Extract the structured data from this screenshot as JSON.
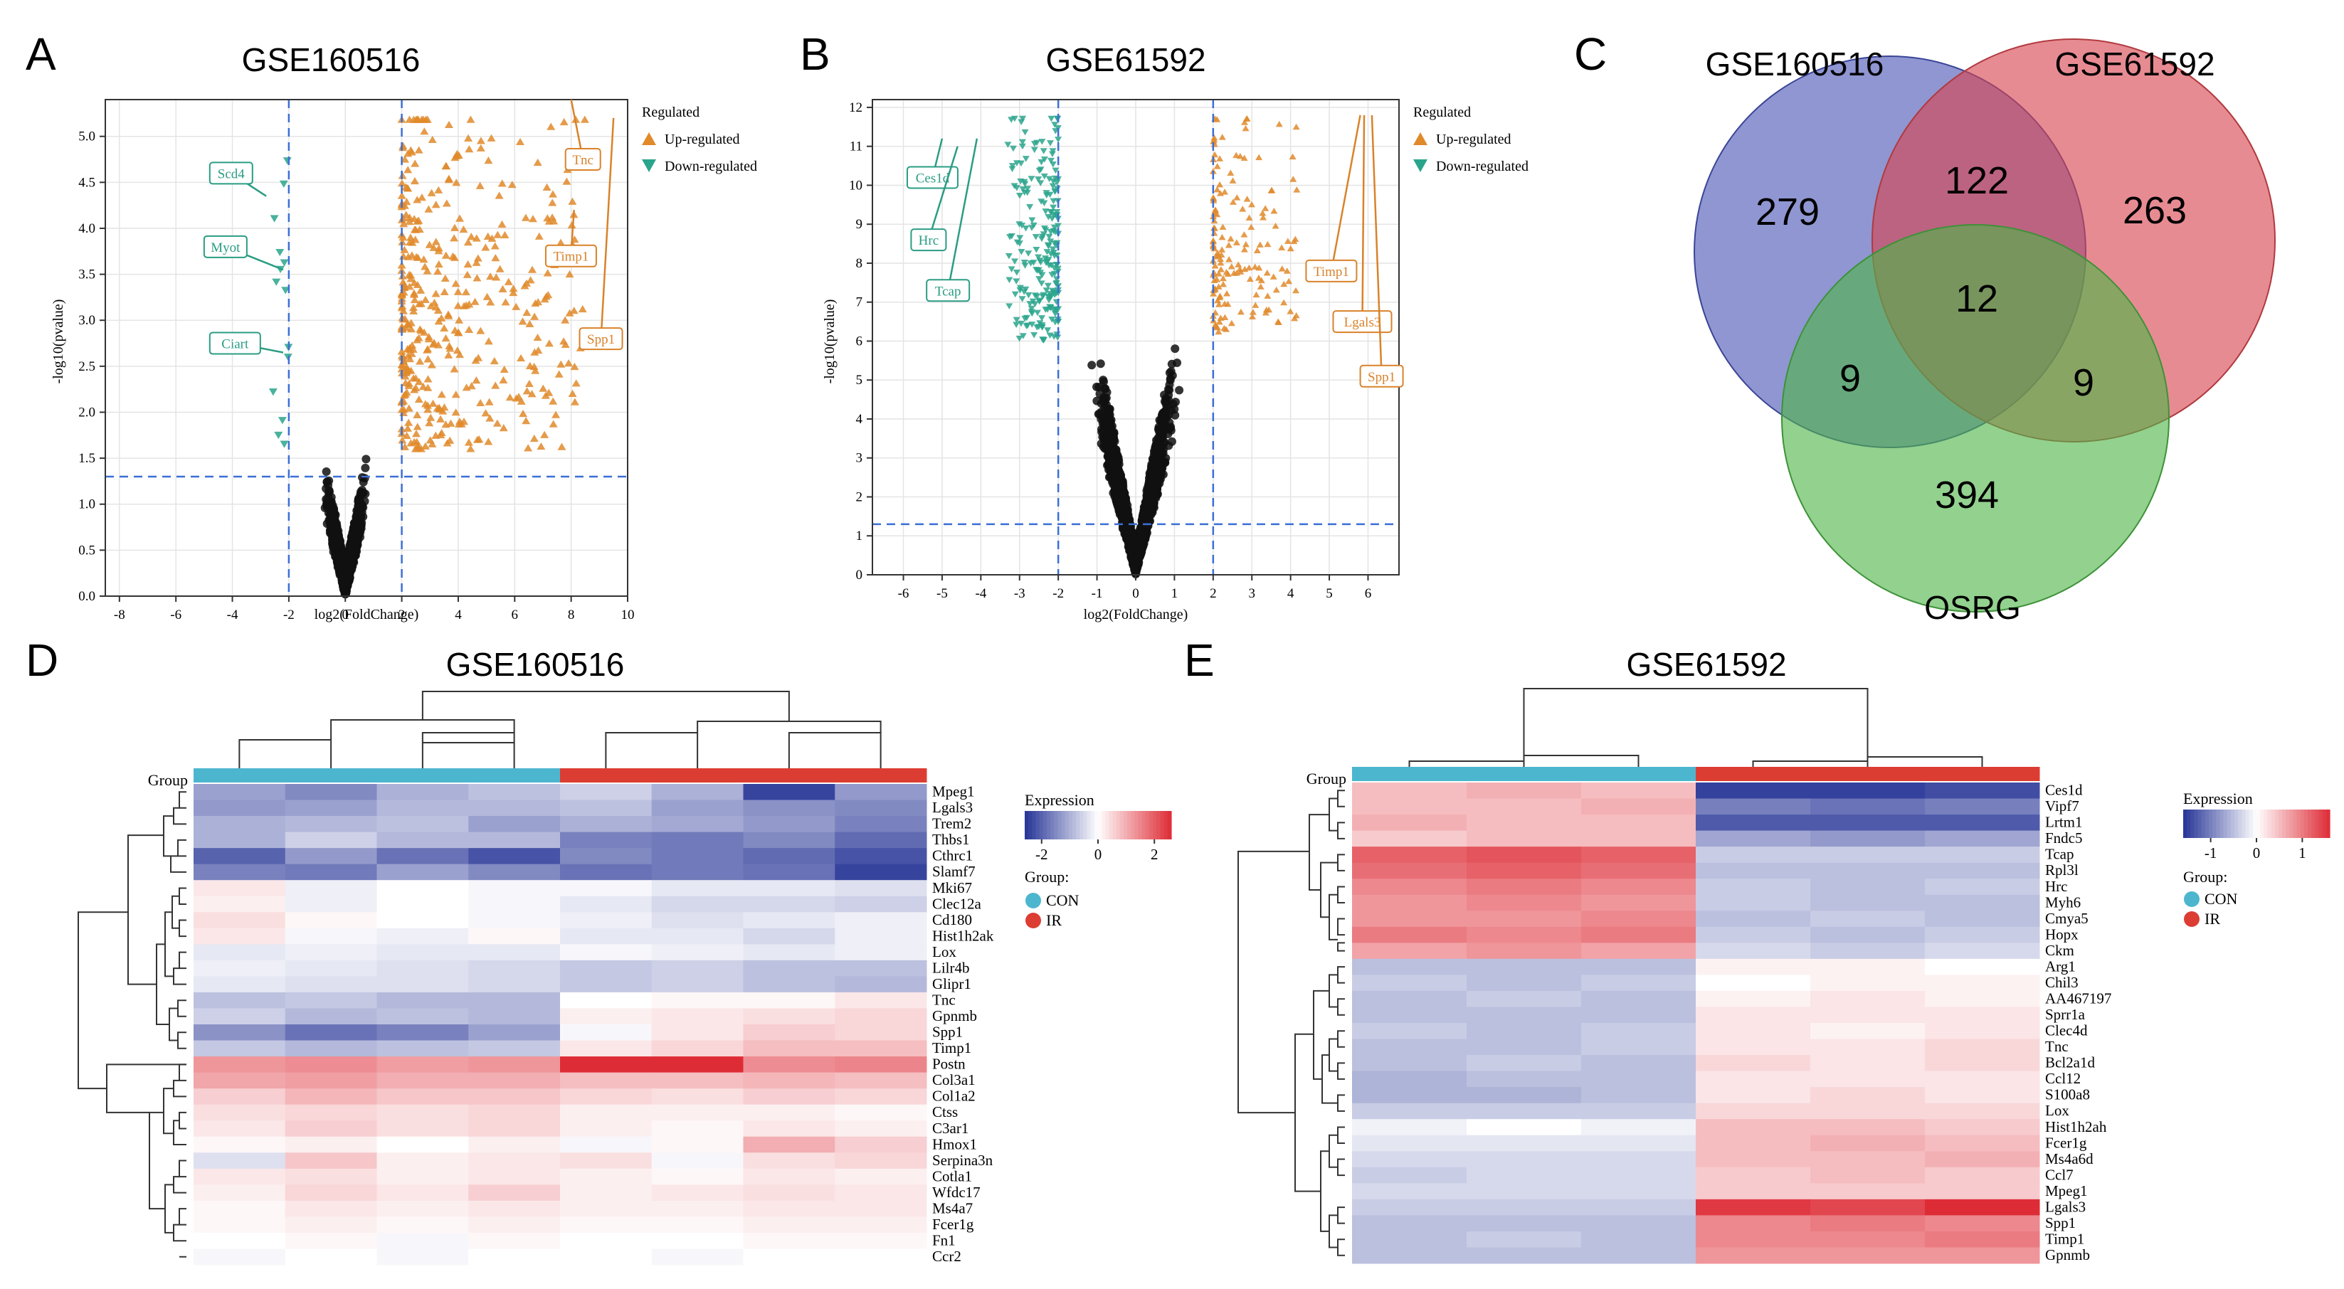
{
  "figure": {
    "panel_letters": [
      "A",
      "B",
      "C",
      "D",
      "E"
    ]
  },
  "legend_texts": {
    "regulated": "Regulated",
    "up": "Up-regulated",
    "down": "Down-regulated"
  },
  "chart_data": [
    {
      "id": "A",
      "type": "scatter",
      "subtype": "volcano",
      "title": "GSE160516",
      "xlabel": "log2(FoldChange)",
      "ylabel": "-log10(pvalue)",
      "xlim": [
        -8.5,
        10
      ],
      "ylim": [
        0,
        5.4
      ],
      "xticks": [
        -8,
        -6,
        -4,
        -2,
        0,
        2,
        4,
        6,
        8,
        10
      ],
      "yticks": [
        0.0,
        0.5,
        1.0,
        1.5,
        2.0,
        2.5,
        3.0,
        3.5,
        4.0,
        4.5,
        5.0
      ],
      "ytick_labels": [
        "0.0",
        "0.5",
        "1.0",
        "1.5",
        "2.0",
        "2.5",
        "3.0",
        "3.5",
        "4.0",
        "4.5",
        "5.0"
      ],
      "fc_cutoff": 2,
      "p_cutoff": 1.3,
      "legend_title": "Regulated",
      "legend": [
        "Up-regulated",
        "Down-regulated"
      ],
      "labels": [
        {
          "gene": "Scd4",
          "dir": "down",
          "pt": [
            -2.8,
            4.35
          ],
          "box": [
            -4.8,
            4.6
          ]
        },
        {
          "gene": "Myot",
          "dir": "down",
          "pt": [
            -2.2,
            3.55
          ],
          "box": [
            -5.0,
            3.8
          ]
        },
        {
          "gene": "Ciart",
          "dir": "down",
          "pt": [
            -2.2,
            2.65
          ],
          "box": [
            -4.8,
            2.75
          ]
        },
        {
          "gene": "Tnc",
          "dir": "up",
          "pt": [
            8.0,
            5.4
          ],
          "box": [
            7.8,
            4.75
          ]
        },
        {
          "gene": "Timp1",
          "dir": "up",
          "pt": [
            8.1,
            4.2
          ],
          "box": [
            7.1,
            3.7
          ]
        },
        {
          "gene": "Spp1",
          "dir": "up",
          "pt": [
            9.5,
            5.2
          ],
          "box": [
            8.3,
            2.8
          ]
        }
      ]
    },
    {
      "id": "B",
      "type": "scatter",
      "subtype": "volcano",
      "title": "GSE61592",
      "xlabel": "log2(FoldChange)",
      "ylabel": "-log10(pvalue)",
      "xlim": [
        -6.8,
        6.8
      ],
      "ylim": [
        0,
        12.2
      ],
      "xticks": [
        -6,
        -5,
        -4,
        -3,
        -2,
        -1,
        0,
        1,
        2,
        3,
        4,
        5,
        6
      ],
      "yticks": [
        0,
        1,
        2,
        3,
        4,
        5,
        6,
        7,
        8,
        9,
        10,
        11,
        12
      ],
      "ytick_labels": [
        "0",
        "1",
        "2",
        "3",
        "4",
        "5",
        "6",
        "7",
        "8",
        "9",
        "10",
        "11",
        "12"
      ],
      "fc_cutoff": 2,
      "p_cutoff": 1.3,
      "legend_title": "Regulated",
      "legend": [
        "Up-regulated",
        "Down-regulated"
      ],
      "labels": [
        {
          "gene": "Ces1d",
          "dir": "down",
          "pt": [
            -5.0,
            11.2
          ],
          "box": [
            -5.9,
            10.2
          ]
        },
        {
          "gene": "Hrc",
          "dir": "down",
          "pt": [
            -4.6,
            11.0
          ],
          "box": [
            -5.8,
            8.6
          ]
        },
        {
          "gene": "Tcap",
          "dir": "down",
          "pt": [
            -4.1,
            11.2
          ],
          "box": [
            -5.4,
            7.3
          ]
        },
        {
          "gene": "Timp1",
          "dir": "up",
          "pt": [
            5.8,
            11.8
          ],
          "box": [
            4.4,
            7.8
          ]
        },
        {
          "gene": "Lgals3",
          "dir": "up",
          "pt": [
            5.9,
            11.8
          ],
          "box": [
            5.1,
            6.5
          ]
        },
        {
          "gene": "Spp1",
          "dir": "up",
          "pt": [
            6.1,
            11.8
          ],
          "box": [
            5.8,
            5.1
          ]
        }
      ]
    },
    {
      "id": "C",
      "type": "venn",
      "sets": [
        "GSE160516",
        "GSE61592",
        "OSRG"
      ],
      "colors": [
        "#4a56b5",
        "#d9444f",
        "#4fb548"
      ],
      "regions": {
        "GSE160516_only": 279,
        "GSE61592_only": 263,
        "OSRG_only": 394,
        "GSE160516_GSE61592": 122,
        "GSE160516_OSRG": 9,
        "GSE61592_OSRG": 9,
        "all_three": 12
      }
    },
    {
      "id": "D",
      "type": "heatmap",
      "title": "GSE160516",
      "group_label": "Group",
      "samples": 8,
      "groups": [
        "CON",
        "CON",
        "CON",
        "CON",
        "IR",
        "IR",
        "IR",
        "IR"
      ],
      "legend_title": "Expression",
      "scale_ticks": [
        "-2",
        "0",
        "2"
      ],
      "scale_range": [
        -2.6,
        2.6
      ],
      "group_legend_title": "Group:",
      "group_legend": [
        "CON",
        "IR"
      ],
      "group_colors": {
        "CON": "#4db6cf",
        "IR": "#dc3d33"
      },
      "rows": [
        {
          "gene": "Mpeg1",
          "values": [
            -1.2,
            -1.5,
            -1.0,
            -0.8,
            -0.6,
            -1.0,
            -2.4,
            -1.3
          ]
        },
        {
          "gene": "Lgals3",
          "values": [
            -1.3,
            -1.2,
            -0.9,
            -0.9,
            -0.8,
            -1.2,
            -1.4,
            -1.5
          ]
        },
        {
          "gene": "Trem2",
          "values": [
            -1.0,
            -0.9,
            -0.8,
            -1.2,
            -1.0,
            -1.1,
            -1.3,
            -1.6
          ]
        },
        {
          "gene": "Thbs1",
          "values": [
            -1.0,
            -0.6,
            -0.9,
            -0.9,
            -1.6,
            -1.7,
            -1.5,
            -1.9
          ]
        },
        {
          "gene": "Cthrc1",
          "values": [
            -2.0,
            -1.3,
            -1.8,
            -2.2,
            -1.5,
            -1.7,
            -1.9,
            -2.2
          ]
        },
        {
          "gene": "Slamf7",
          "values": [
            -1.6,
            -1.7,
            -1.2,
            -1.5,
            -1.8,
            -1.7,
            -1.8,
            -2.4
          ]
        },
        {
          "gene": "Mki67",
          "values": [
            0.3,
            -0.2,
            0.0,
            -0.1,
            -0.1,
            -0.3,
            -0.3,
            -0.4
          ]
        },
        {
          "gene": "Clec12a",
          "values": [
            0.2,
            -0.2,
            0.0,
            -0.1,
            -0.3,
            -0.5,
            -0.5,
            -0.6
          ]
        },
        {
          "gene": "Cd180",
          "values": [
            0.4,
            0.1,
            0.0,
            -0.1,
            -0.2,
            -0.4,
            -0.3,
            -0.2
          ]
        },
        {
          "gene": "Hist1h2ak",
          "values": [
            0.3,
            -0.1,
            -0.2,
            0.1,
            -0.3,
            -0.3,
            -0.5,
            -0.2
          ]
        },
        {
          "gene": "Lox",
          "values": [
            -0.3,
            -0.2,
            -0.3,
            -0.3,
            -0.1,
            -0.2,
            -0.3,
            -0.2
          ]
        },
        {
          "gene": "Lilr4b",
          "values": [
            -0.2,
            -0.3,
            -0.4,
            -0.5,
            -0.7,
            -0.6,
            -0.8,
            -0.8
          ]
        },
        {
          "gene": "Glipr1",
          "values": [
            -0.3,
            -0.4,
            -0.4,
            -0.5,
            -0.7,
            -0.6,
            -0.8,
            -0.9
          ]
        },
        {
          "gene": "Tnc",
          "values": [
            -0.8,
            -0.7,
            -0.9,
            -0.9,
            0.0,
            0.1,
            0.1,
            0.3
          ]
        },
        {
          "gene": "Gpnmb",
          "values": [
            -0.6,
            -0.9,
            -0.8,
            -0.9,
            0.2,
            0.3,
            0.4,
            0.5
          ]
        },
        {
          "gene": "Spp1",
          "values": [
            -1.4,
            -1.8,
            -1.6,
            -1.2,
            -0.1,
            0.3,
            0.6,
            0.5
          ]
        },
        {
          "gene": "Timp1",
          "values": [
            -0.7,
            -0.9,
            -0.8,
            -0.7,
            0.3,
            0.5,
            0.8,
            0.8
          ]
        },
        {
          "gene": "Postn",
          "values": [
            1.3,
            1.4,
            1.2,
            1.3,
            2.6,
            2.7,
            1.4,
            1.5
          ]
        },
        {
          "gene": "Col3a1",
          "values": [
            1.1,
            1.2,
            1.0,
            1.0,
            0.8,
            0.8,
            0.9,
            0.8
          ]
        },
        {
          "gene": "Col1a2",
          "values": [
            0.6,
            0.9,
            0.7,
            0.7,
            0.5,
            0.4,
            0.6,
            0.5
          ]
        },
        {
          "gene": "Ctss",
          "values": [
            0.4,
            0.5,
            0.4,
            0.5,
            0.2,
            0.2,
            0.2,
            0.1
          ]
        },
        {
          "gene": "C3ar1",
          "values": [
            0.3,
            0.6,
            0.4,
            0.5,
            0.2,
            0.1,
            0.3,
            0.2
          ]
        },
        {
          "gene": "Hmox1",
          "values": [
            0.1,
            0.2,
            0.0,
            0.2,
            -0.1,
            0.1,
            1.0,
            0.6
          ]
        },
        {
          "gene": "Serpina3n",
          "values": [
            -0.4,
            0.7,
            0.2,
            0.3,
            0.4,
            -0.1,
            0.4,
            0.5
          ]
        },
        {
          "gene": "Cotla1",
          "values": [
            0.3,
            0.4,
            0.2,
            0.3,
            0.2,
            0.1,
            0.3,
            0.2
          ]
        },
        {
          "gene": "Wfdc17",
          "values": [
            0.2,
            0.5,
            0.3,
            0.6,
            0.2,
            0.3,
            0.4,
            0.3
          ]
        },
        {
          "gene": "Ms4a7",
          "values": [
            0.1,
            0.3,
            0.2,
            0.3,
            0.2,
            0.2,
            0.3,
            0.3
          ]
        },
        {
          "gene": "Fcer1g",
          "values": [
            0.1,
            0.2,
            0.1,
            0.2,
            0.1,
            0.1,
            0.2,
            0.2
          ]
        },
        {
          "gene": "Fn1",
          "values": [
            0.0,
            0.1,
            -0.1,
            0.1,
            0.0,
            0.0,
            0.1,
            0.1
          ]
        },
        {
          "gene": "Ccr2",
          "values": [
            -0.1,
            0.0,
            -0.1,
            0.0,
            0.0,
            -0.1,
            0.0,
            0.0
          ]
        }
      ]
    },
    {
      "id": "E",
      "type": "heatmap",
      "title": "GSE61592",
      "group_label": "Group",
      "samples": 6,
      "groups": [
        "CON",
        "CON",
        "CON",
        "IR",
        "IR",
        "IR"
      ],
      "legend_title": "Expression",
      "scale_ticks": [
        "-1",
        "0",
        "1"
      ],
      "scale_range": [
        -1.6,
        1.6
      ],
      "group_legend_title": "Group:",
      "group_legend": [
        "CON",
        "IR"
      ],
      "group_colors": {
        "CON": "#4db6cf",
        "IR": "#dc3d33"
      },
      "rows": [
        {
          "gene": "Ces1d",
          "values": [
            0.5,
            0.6,
            0.5,
            -1.5,
            -1.5,
            -1.4
          ]
        },
        {
          "gene": "Vipf7",
          "values": [
            0.5,
            0.5,
            0.6,
            -1.0,
            -1.1,
            -1.0
          ]
        },
        {
          "gene": "Lrtm1",
          "values": [
            0.6,
            0.5,
            0.5,
            -1.3,
            -1.3,
            -1.3
          ]
        },
        {
          "gene": "Fndc5",
          "values": [
            0.4,
            0.5,
            0.5,
            -0.7,
            -0.8,
            -0.7
          ]
        },
        {
          "gene": "Tcap",
          "values": [
            1.2,
            1.3,
            1.2,
            -0.4,
            -0.4,
            -0.4
          ]
        },
        {
          "gene": "Rpl3l",
          "values": [
            1.1,
            1.2,
            1.1,
            -0.5,
            -0.5,
            -0.5
          ]
        },
        {
          "gene": "Hrc",
          "values": [
            0.9,
            1.0,
            0.9,
            -0.4,
            -0.5,
            -0.4
          ]
        },
        {
          "gene": "Myh6",
          "values": [
            0.8,
            0.9,
            0.8,
            -0.4,
            -0.5,
            -0.5
          ]
        },
        {
          "gene": "Cmya5",
          "values": [
            0.8,
            0.8,
            0.9,
            -0.5,
            -0.4,
            -0.5
          ]
        },
        {
          "gene": "Hopx",
          "values": [
            1.0,
            0.9,
            1.0,
            -0.4,
            -0.5,
            -0.4
          ]
        },
        {
          "gene": "Ckm",
          "values": [
            0.7,
            0.8,
            0.7,
            -0.3,
            -0.4,
            -0.3
          ]
        },
        {
          "gene": "Arg1",
          "values": [
            -0.5,
            -0.5,
            -0.5,
            0.1,
            0.1,
            0.0
          ]
        },
        {
          "gene": "Chil3",
          "values": [
            -0.4,
            -0.5,
            -0.4,
            0.0,
            0.1,
            0.1
          ]
        },
        {
          "gene": "AA467197",
          "values": [
            -0.5,
            -0.4,
            -0.5,
            0.1,
            0.2,
            0.1
          ]
        },
        {
          "gene": "Sprr1a",
          "values": [
            -0.5,
            -0.5,
            -0.5,
            0.2,
            0.2,
            0.2
          ]
        },
        {
          "gene": "Clec4d",
          "values": [
            -0.4,
            -0.5,
            -0.4,
            0.2,
            0.1,
            0.2
          ]
        },
        {
          "gene": "Tnc",
          "values": [
            -0.5,
            -0.5,
            -0.4,
            0.2,
            0.2,
            0.3
          ]
        },
        {
          "gene": "Bcl2a1d",
          "values": [
            -0.5,
            -0.4,
            -0.5,
            0.3,
            0.2,
            0.3
          ]
        },
        {
          "gene": "Ccl12",
          "values": [
            -0.6,
            -0.5,
            -0.5,
            0.2,
            0.2,
            0.2
          ]
        },
        {
          "gene": "S100a8",
          "values": [
            -0.6,
            -0.6,
            -0.5,
            0.2,
            0.3,
            0.2
          ]
        },
        {
          "gene": "Lox",
          "values": [
            -0.4,
            -0.4,
            -0.4,
            0.3,
            0.3,
            0.3
          ]
        },
        {
          "gene": "Hist1h2ah",
          "values": [
            -0.1,
            0.0,
            -0.1,
            0.5,
            0.5,
            0.4
          ]
        },
        {
          "gene": "Fcer1g",
          "values": [
            -0.2,
            -0.2,
            -0.2,
            0.5,
            0.6,
            0.5
          ]
        },
        {
          "gene": "Ms4a6d",
          "values": [
            -0.3,
            -0.3,
            -0.3,
            0.5,
            0.5,
            0.6
          ]
        },
        {
          "gene": "Ccl7",
          "values": [
            -0.4,
            -0.3,
            -0.3,
            0.4,
            0.5,
            0.4
          ]
        },
        {
          "gene": "Mpeg1",
          "values": [
            -0.3,
            -0.3,
            -0.3,
            0.4,
            0.4,
            0.4
          ]
        },
        {
          "gene": "Lgals3",
          "values": [
            -0.4,
            -0.4,
            -0.4,
            1.5,
            1.4,
            1.6
          ]
        },
        {
          "gene": "Spp1",
          "values": [
            -0.5,
            -0.5,
            -0.5,
            0.9,
            1.0,
            0.9
          ]
        },
        {
          "gene": "Timp1",
          "values": [
            -0.5,
            -0.4,
            -0.5,
            0.9,
            0.9,
            1.0
          ]
        },
        {
          "gene": "Gpnmb",
          "values": [
            -0.5,
            -0.5,
            -0.5,
            0.8,
            0.8,
            0.8
          ]
        }
      ]
    }
  ]
}
